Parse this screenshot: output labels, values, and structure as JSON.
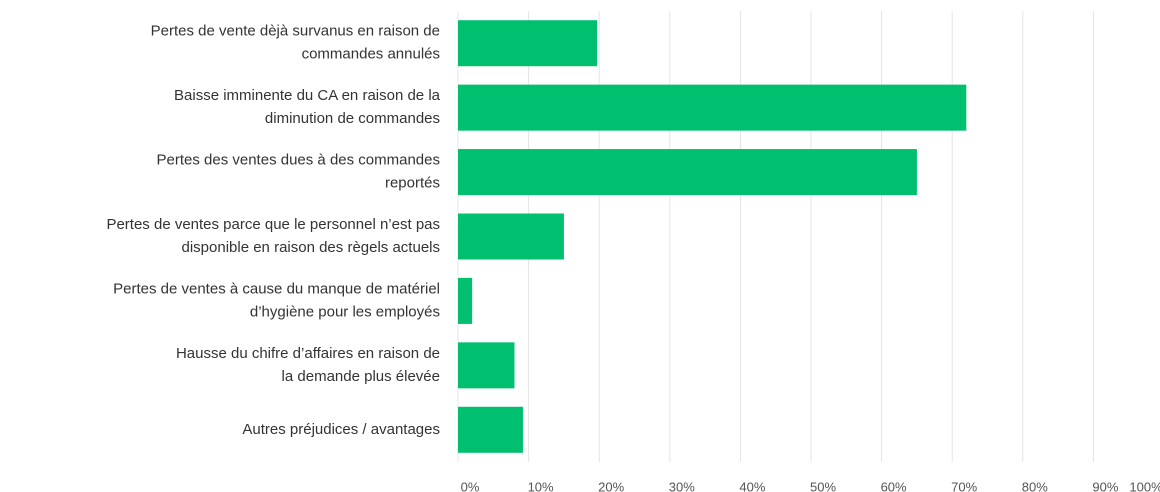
{
  "chart_data": {
    "type": "bar",
    "orientation": "horizontal",
    "categories": [
      [
        "Pertes de vente dèjà survanus en raison de",
        "commandes annulés"
      ],
      [
        "Baisse imminente du CA en raison de la",
        "diminution de commandes"
      ],
      [
        "Pertes des ventes dues à des commandes",
        "reportés"
      ],
      [
        "Pertes de ventes parce que le personnel n’est pas",
        "disponible en raison des règels actuels"
      ],
      [
        "Pertes de ventes à cause du manque de matériel",
        "d’hygiène pour les employés"
      ],
      [
        "Hausse du chifre d’affaires en raison de",
        "la demande plus élevée"
      ],
      [
        "Autres préjudices / avantages"
      ]
    ],
    "values": [
      19.7,
      72,
      65,
      15,
      2,
      8,
      9.2
    ],
    "color": "#00bf6f",
    "xlim": [
      0,
      100
    ],
    "xticks": [
      {
        "value": 0,
        "label": "0%"
      },
      {
        "value": 10,
        "label": "10%"
      },
      {
        "value": 20,
        "label": "20%"
      },
      {
        "value": 30,
        "label": "30%"
      },
      {
        "value": 40,
        "label": "40%"
      },
      {
        "value": 50,
        "label": "50%"
      },
      {
        "value": 60,
        "label": "60%"
      },
      {
        "value": 70,
        "label": "70%"
      },
      {
        "value": 80,
        "label": "80%"
      },
      {
        "value": 90,
        "label": "90%"
      },
      {
        "value": 100,
        "label": "100%"
      }
    ],
    "grid": true
  }
}
